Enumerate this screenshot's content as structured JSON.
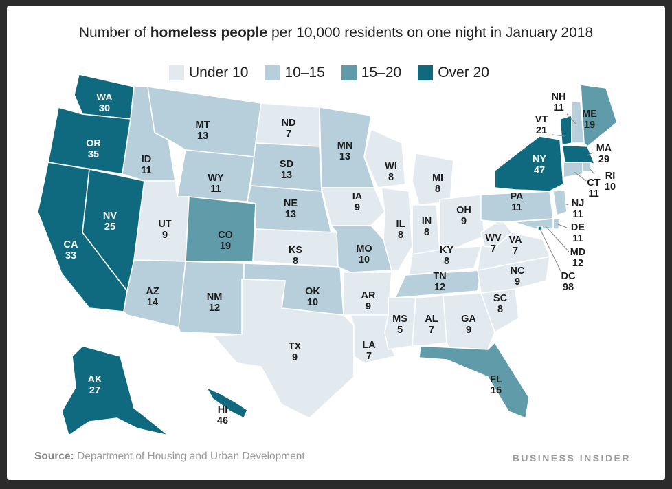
{
  "title": {
    "prefix": "Number of ",
    "bold": "homeless people",
    "suffix": " per 10,000 residents on one night in January 2018"
  },
  "legend": [
    {
      "label": "Under 10",
      "color": "#e2eaef"
    },
    {
      "label": "10–15",
      "color": "#b7cfda"
    },
    {
      "label": "15–20",
      "color": "#5f9ba9"
    },
    {
      "label": "Over 20",
      "color": "#0f6a80"
    }
  ],
  "colors": {
    "under10": "#e2eaef",
    "b10_15": "#b7cfda",
    "b15_20": "#5f9ba9",
    "over20": "#0f6a80",
    "text_dark": "#1c1c1c",
    "text_light": "#ffffff"
  },
  "states": [
    {
      "abbr": "WA",
      "value": "30"
    },
    {
      "abbr": "OR",
      "value": "35"
    },
    {
      "abbr": "CA",
      "value": "33"
    },
    {
      "abbr": "NV",
      "value": "25"
    },
    {
      "abbr": "ID",
      "value": "11"
    },
    {
      "abbr": "MT",
      "value": "13"
    },
    {
      "abbr": "WY",
      "value": "11"
    },
    {
      "abbr": "UT",
      "value": "9"
    },
    {
      "abbr": "AZ",
      "value": "14"
    },
    {
      "abbr": "CO",
      "value": "19"
    },
    {
      "abbr": "NM",
      "value": "12"
    },
    {
      "abbr": "ND",
      "value": "7"
    },
    {
      "abbr": "SD",
      "value": "13"
    },
    {
      "abbr": "NE",
      "value": "13"
    },
    {
      "abbr": "KS",
      "value": "8"
    },
    {
      "abbr": "OK",
      "value": "10"
    },
    {
      "abbr": "TX",
      "value": "9"
    },
    {
      "abbr": "MN",
      "value": "13"
    },
    {
      "abbr": "IA",
      "value": "9"
    },
    {
      "abbr": "MO",
      "value": "10"
    },
    {
      "abbr": "AR",
      "value": "9"
    },
    {
      "abbr": "LA",
      "value": "7"
    },
    {
      "abbr": "WI",
      "value": "8"
    },
    {
      "abbr": "IL",
      "value": "8"
    },
    {
      "abbr": "MI",
      "value": "8"
    },
    {
      "abbr": "IN",
      "value": "8"
    },
    {
      "abbr": "OH",
      "value": "9"
    },
    {
      "abbr": "KY",
      "value": "8"
    },
    {
      "abbr": "TN",
      "value": "12"
    },
    {
      "abbr": "MS",
      "value": "5"
    },
    {
      "abbr": "AL",
      "value": "7"
    },
    {
      "abbr": "GA",
      "value": "9"
    },
    {
      "abbr": "FL",
      "value": "15"
    },
    {
      "abbr": "SC",
      "value": "8"
    },
    {
      "abbr": "NC",
      "value": "9"
    },
    {
      "abbr": "VA",
      "value": "7"
    },
    {
      "abbr": "WV",
      "value": "7"
    },
    {
      "abbr": "PA",
      "value": "11"
    },
    {
      "abbr": "NY",
      "value": "47"
    },
    {
      "abbr": "VT",
      "value": "21"
    },
    {
      "abbr": "NH",
      "value": "11"
    },
    {
      "abbr": "ME",
      "value": "19"
    },
    {
      "abbr": "MA",
      "value": "29"
    },
    {
      "abbr": "RI",
      "value": "10"
    },
    {
      "abbr": "CT",
      "value": "11"
    },
    {
      "abbr": "NJ",
      "value": "11"
    },
    {
      "abbr": "DE",
      "value": "11"
    },
    {
      "abbr": "MD",
      "value": "12"
    },
    {
      "abbr": "DC",
      "value": "98"
    },
    {
      "abbr": "AK",
      "value": "27"
    },
    {
      "abbr": "HI",
      "value": "46"
    }
  ],
  "source": {
    "label": "Source:",
    "text": " Department of Housing and Urban Development"
  },
  "brand": "BUSINESS INSIDER"
}
